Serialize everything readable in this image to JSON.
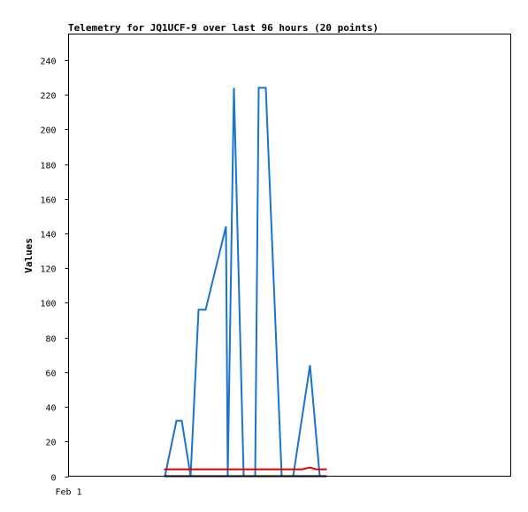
{
  "chart_data": {
    "type": "line",
    "title": "Telemetry for JQ1UCF-9 over last 96 hours (20 points)",
    "ylabel": "Values",
    "xlabel": "",
    "ylim": [
      0,
      255
    ],
    "yticks": [
      0,
      20,
      40,
      60,
      80,
      100,
      120,
      140,
      160,
      180,
      200,
      220,
      240
    ],
    "x_tick_labels": [
      {
        "label": "Feb 1",
        "x": 0
      }
    ],
    "xlim": [
      0,
      100
    ],
    "grid": false,
    "legend": "none",
    "series": [
      {
        "color": "#1874cd",
        "width": 2,
        "points": [
          [
            21.8,
            0
          ],
          [
            24.4,
            32
          ],
          [
            25.6,
            32
          ],
          [
            27.6,
            0
          ],
          [
            29.4,
            96
          ],
          [
            31.0,
            96
          ],
          [
            35.6,
            144
          ],
          [
            36.0,
            0
          ],
          [
            37.4,
            224
          ],
          [
            39.6,
            0
          ],
          [
            42.2,
            0
          ],
          [
            43.0,
            224
          ],
          [
            44.6,
            224
          ],
          [
            48.2,
            0
          ],
          [
            50.8,
            0
          ],
          [
            54.6,
            64
          ],
          [
            56.8,
            0
          ]
        ]
      },
      {
        "color": "#e00000",
        "width": 2,
        "points": [
          [
            21.6,
            4
          ],
          [
            52.8,
            4
          ],
          [
            54.6,
            5
          ],
          [
            56.0,
            4
          ],
          [
            58.4,
            4
          ]
        ]
      },
      {
        "color": "#000000",
        "width": 2,
        "points": [
          [
            21.6,
            0
          ],
          [
            58.4,
            0
          ]
        ]
      }
    ]
  }
}
